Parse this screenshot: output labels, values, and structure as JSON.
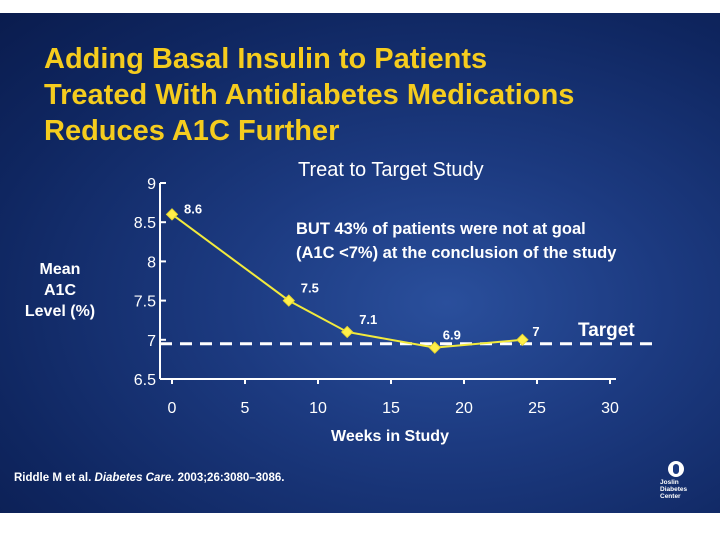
{
  "title_lines": [
    "Adding Basal Insulin to Patients",
    "Treated With Antidiabetes Medications",
    "Reduces A1C Further"
  ],
  "chart_data": {
    "type": "line",
    "title": "Treat to Target Study",
    "xlabel": "Weeks in Study",
    "ylabel_lines": [
      "Mean",
      "A1C",
      "Level (%)"
    ],
    "x": [
      0,
      8,
      12,
      18,
      24
    ],
    "y": [
      8.6,
      7.5,
      7.1,
      6.9,
      7
    ],
    "point_labels": [
      "8.6",
      "7.5",
      "7.1",
      "6.9",
      "7"
    ],
    "xlim": [
      0,
      30
    ],
    "ylim": [
      6.5,
      9
    ],
    "xticks": [
      0,
      5,
      10,
      15,
      20,
      25,
      30
    ],
    "xtick_labels": [
      "0",
      "5",
      "10",
      "15",
      "20",
      "25",
      "30"
    ],
    "yticks": [
      6.5,
      7,
      7.5,
      8,
      8.5,
      9
    ],
    "ytick_labels": [
      "6.5",
      "7",
      "7.5",
      "8",
      "8.5",
      "9"
    ],
    "target_value": 6.95,
    "target_label": "Target",
    "line_color": "#f2ea3c",
    "marker_color": "#ffef4a",
    "axis_color": "#ffffff",
    "annotation_lines": [
      "BUT 43% of patients were not at goal",
      "(A1C <7%) at the conclusion of the study"
    ]
  },
  "citation": {
    "authors": "Riddle M et al.",
    "journal": "Diabetes Care.",
    "details": "2003;26:3080–3086."
  },
  "logo": {
    "lines": [
      "Joslin",
      "Diabetes",
      "Center"
    ]
  },
  "colors": {
    "title": "#f5cc1e",
    "background": "#1c3a80"
  }
}
